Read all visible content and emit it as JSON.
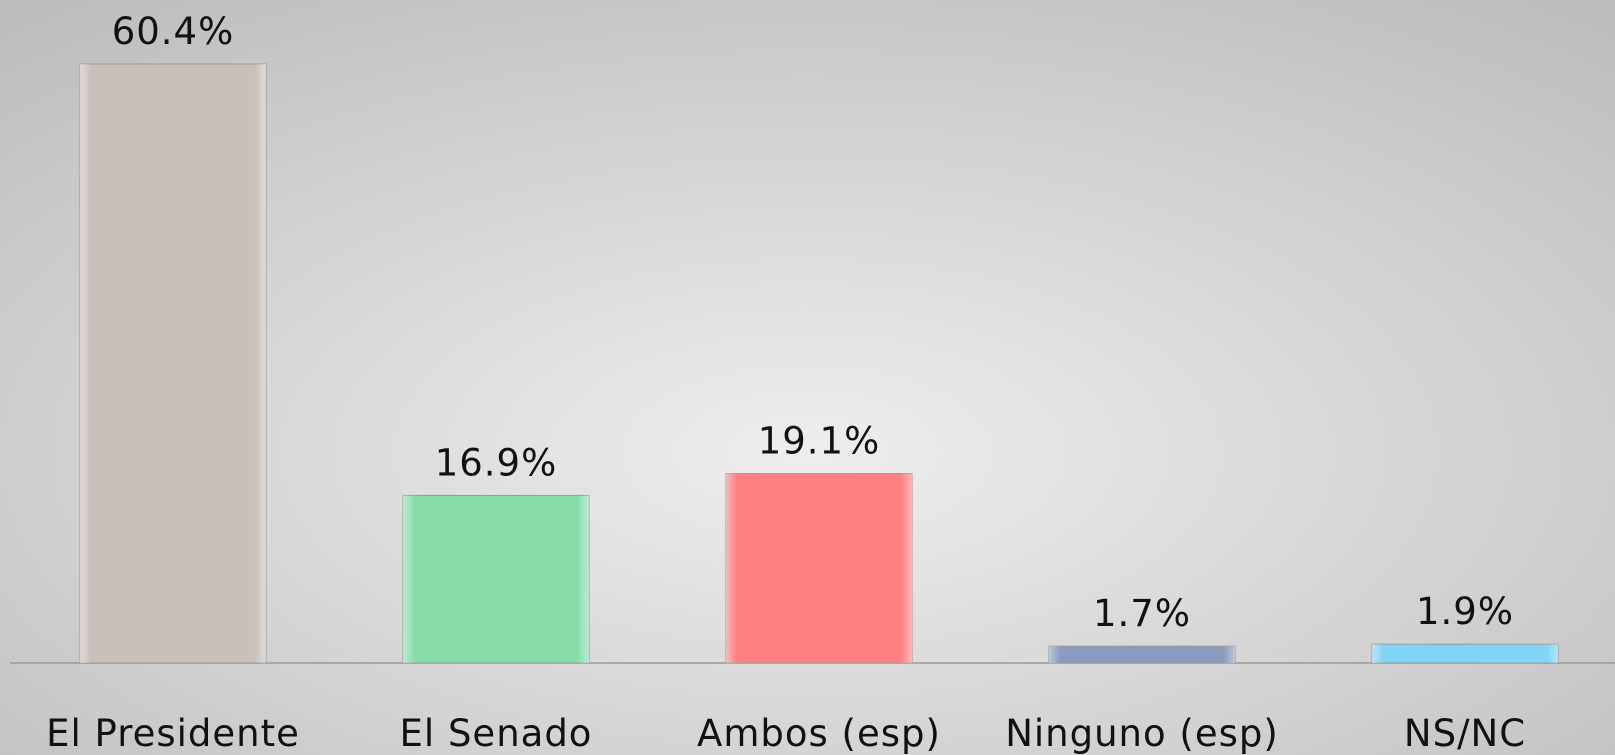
{
  "chart_data": {
    "type": "bar",
    "categories": [
      "El Presidente",
      "El Senado",
      "Ambos (esp)",
      "Ninguno (esp)",
      "NS/NC"
    ],
    "values": [
      60.4,
      16.9,
      19.1,
      1.7,
      1.9
    ],
    "value_labels": [
      "60.4%",
      "16.9%",
      "19.1%",
      "1.7%",
      "1.9%"
    ],
    "colors": [
      "#c9c0bb",
      "#86ddaa",
      "#ff8080",
      "#8a9bbf",
      "#80d4f5"
    ]
  }
}
